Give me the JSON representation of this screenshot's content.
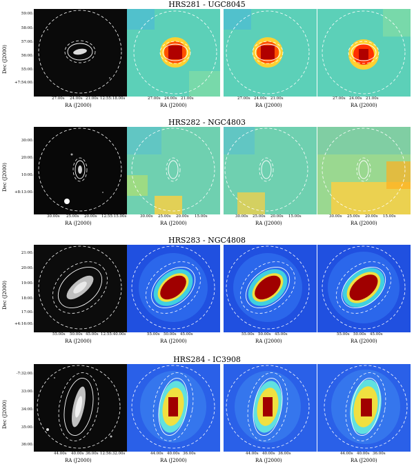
{
  "figure": {
    "panels": [
      {
        "title": "HRS281 - UGC8045",
        "dec_label": "Dec (J2000)",
        "ra_label": "RA (J2000)",
        "yticks": [
          "59:00.0",
          "58:00.0",
          "57:00.0",
          "56:00.0",
          "55:00.0",
          "+7:54:00.0"
        ],
        "xticks_optical": [
          "27.00s",
          "24.00s",
          "21.00s",
          "12:55:18.00s"
        ],
        "xticks_maps": [
          "27.00s",
          "24.00s",
          "21.00s"
        ],
        "colors": {
          "background": "#5cd0b8",
          "peak": "#b00000",
          "ring": "#ffc020"
        },
        "maps": [
          "map-a",
          "map-b",
          "map-c"
        ]
      },
      {
        "title": "HRS282 - NGC4803",
        "dec_label": "Dec (J2000)",
        "ra_label": "RA (J2000)",
        "yticks": [
          "30:00.0",
          "20:00.0",
          "10:00.0",
          "+8:13:00.0"
        ],
        "xticks_optical": [
          "30.00s",
          "25.00s",
          "20.00s",
          "12:55:15.00s"
        ],
        "xticks_maps": [
          "30.00s",
          "25.00s",
          "20.00s",
          "15.00s"
        ],
        "colors": {
          "background": "#6fd0b0",
          "peak": "#ffd040",
          "ring": "#b0e070"
        },
        "maps": [
          "map-a",
          "map-b",
          "map-c"
        ]
      },
      {
        "title": "HRS283 - NGC4808",
        "dec_label": "Dec (J2000)",
        "ra_label": "RA (J2000)",
        "yticks": [
          "21:00.0",
          "20:00.0",
          "19:00.0",
          "18:00.0",
          "17:00.0",
          "+4:16:00.0"
        ],
        "xticks_optical": [
          "55.00s",
          "50.00s",
          "45.00s",
          "12:55:40.00s"
        ],
        "xticks_maps": [
          "55.00s",
          "50.00s",
          "45.00s"
        ],
        "colors": {
          "background": "#2050e0",
          "peak": "#a00000",
          "ring": "#40d0e0"
        },
        "maps": [
          "map-a",
          "map-b",
          "map-c"
        ]
      },
      {
        "title": "HRS284 - IC3908",
        "dec_label": "Dec (J2000)",
        "ra_label": "RA (J2000)",
        "yticks": [
          "-7:32:00.0",
          "33:00.0",
          "34:00.0",
          "35:00.0",
          "36:00.0"
        ],
        "xticks_optical": [
          "44.00s",
          "40.00s",
          "36.00s",
          "12:56:32.00s"
        ],
        "xticks_maps": [
          "44.00s",
          "40.00s",
          "36.00s"
        ],
        "colors": {
          "background": "#2a60e8",
          "peak": "#a00000",
          "ring": "#60e0e0"
        },
        "maps": [
          "map-a",
          "map-b",
          "map-c"
        ]
      }
    ]
  }
}
